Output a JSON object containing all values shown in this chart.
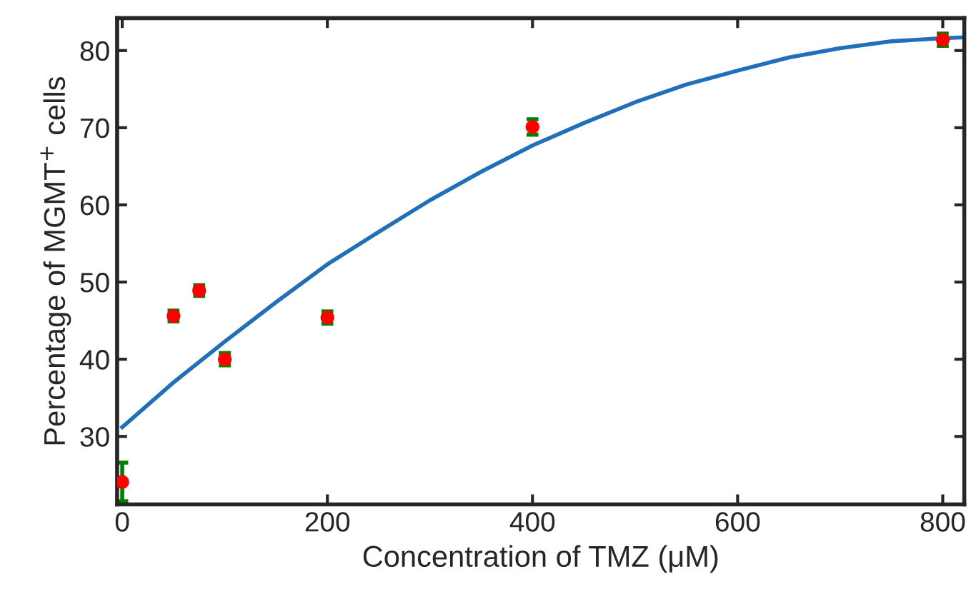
{
  "chart_data": {
    "type": "scatter",
    "xlabel": "Concentration of TMZ (μM)",
    "ylabel": "Percentage of MGMT$^{+}$ cells",
    "series": [
      {
        "color": "#ff0000",
        "x": [
          0,
          50,
          75,
          100,
          200,
          400,
          800
        ],
        "values": [
          24.1,
          45.6,
          48.9,
          40.0,
          45.4,
          70.1,
          81.4
        ],
        "errors": [
          2.5,
          0.7,
          0.7,
          0.8,
          0.8,
          1.0,
          0.8
        ],
        "marker": "circle"
      },
      {
        "type": "line",
        "color": "#1f6fba",
        "marker": "none",
        "x": [
          0,
          50,
          100,
          150,
          200,
          250,
          300,
          350,
          400,
          450,
          500,
          550,
          600,
          650,
          700,
          750,
          800,
          820
        ],
        "values": [
          31.2,
          37.0,
          42.3,
          47.4,
          52.3,
          56.5,
          60.6,
          64.3,
          67.7,
          70.6,
          73.3,
          75.6,
          77.4,
          79.1,
          80.3,
          81.2,
          81.6,
          81.7
        ]
      }
    ],
    "xlim": [
      -5,
      821
    ],
    "ylim": [
      21.2,
      84.2
    ],
    "xticks": [
      0,
      200,
      400,
      600,
      800
    ],
    "yticks": [
      30,
      40,
      50,
      60,
      70,
      80
    ],
    "grid": false,
    "legend": false
  }
}
